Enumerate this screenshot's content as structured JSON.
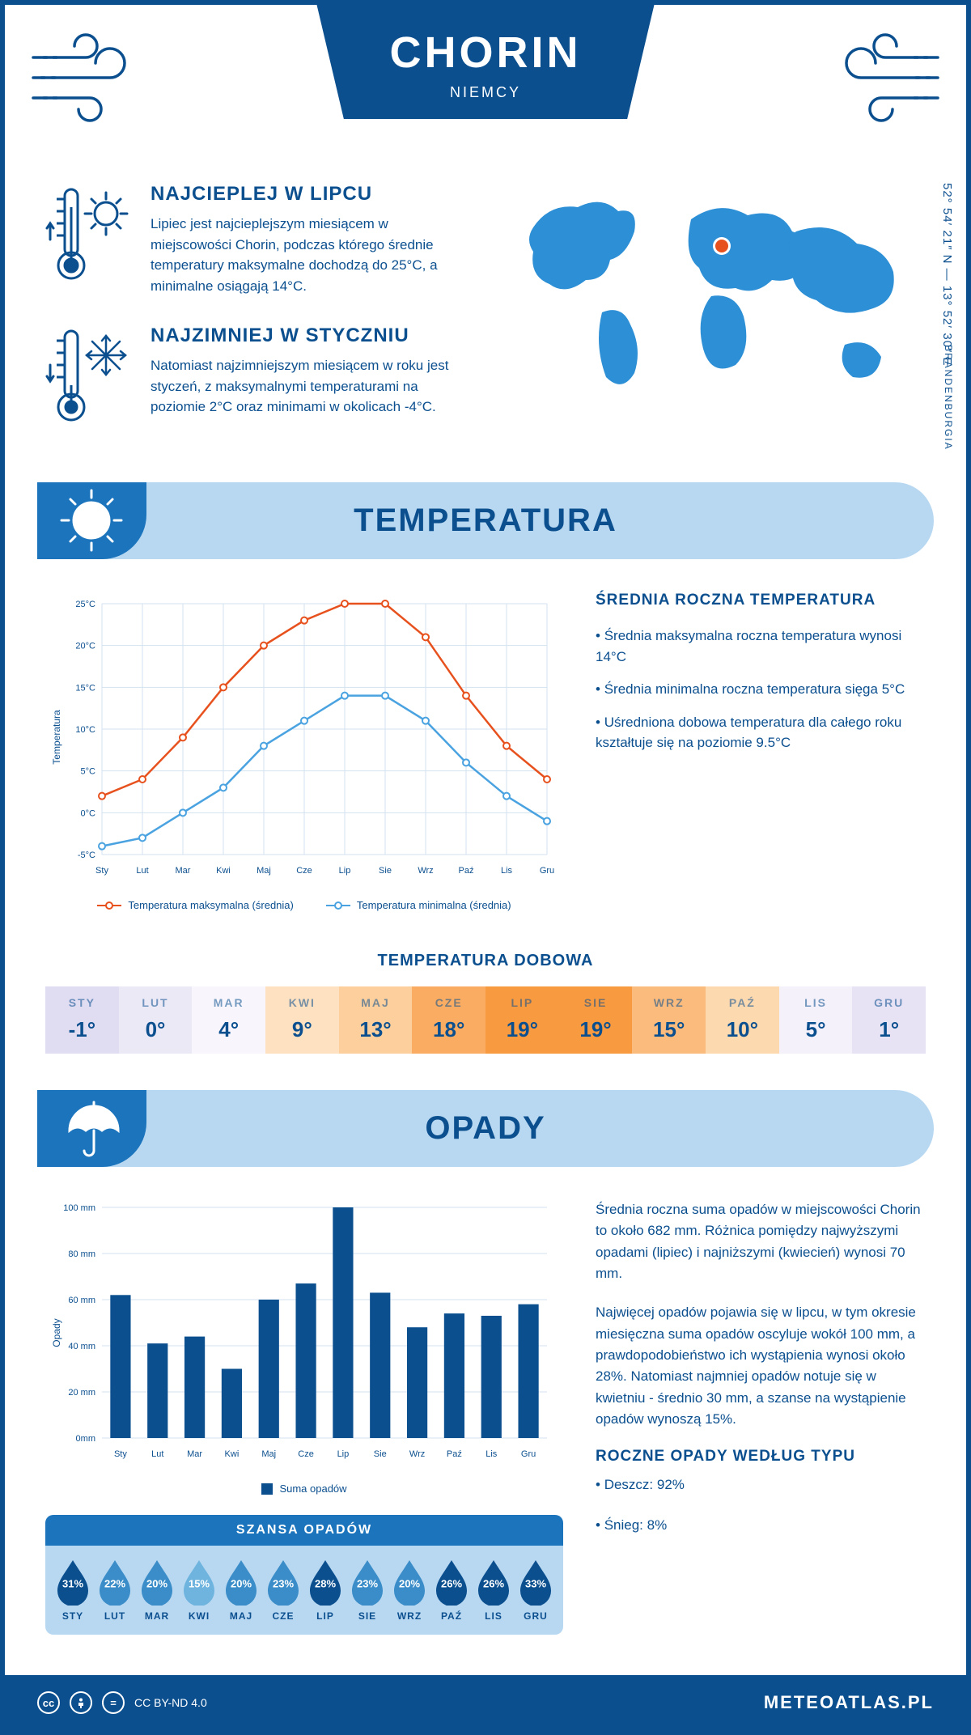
{
  "header": {
    "title": "CHORIN",
    "subtitle": "NIEMCY"
  },
  "location": {
    "coords": "52° 54′ 21″ N — 13° 52′ 30″ E",
    "region": "BRANDENBURGIA",
    "marker_color": "#e7511e"
  },
  "intro": {
    "hot": {
      "title": "NAJCIEPLEJ W LIPCU",
      "text": "Lipiec jest najcieplejszym miesiącem w miejscowości Chorin, podczas którego średnie temperatury maksymalne dochodzą do 25°C, a minimalne osiągają 14°C."
    },
    "cold": {
      "title": "NAJZIMNIEJ W STYCZNIU",
      "text": "Natomiast najzimniejszym miesiącem w roku jest styczeń, z maksymalnymi temperaturami na poziomie 2°C oraz minimami w okolicach -4°C."
    }
  },
  "months_short": [
    "Sty",
    "Lut",
    "Mar",
    "Kwi",
    "Maj",
    "Cze",
    "Lip",
    "Sie",
    "Wrz",
    "Paź",
    "Lis",
    "Gru"
  ],
  "months_upper": [
    "STY",
    "LUT",
    "MAR",
    "KWI",
    "MAJ",
    "CZE",
    "LIP",
    "SIE",
    "WRZ",
    "PAŹ",
    "LIS",
    "GRU"
  ],
  "temperature": {
    "section_title": "TEMPERATURA",
    "chart": {
      "type": "line",
      "ylabel": "Temperatura",
      "ylim": [
        -5,
        25
      ],
      "ytick_step": 5,
      "y_ticks": [
        "-5°C",
        "0°C",
        "5°C",
        "10°C",
        "15°C",
        "20°C",
        "25°C"
      ],
      "grid_color": "#d3e2f0",
      "background": "#ffffff",
      "series": {
        "max": {
          "label": "Temperatura maksymalna (średnia)",
          "color": "#e7511e",
          "values": [
            2,
            4,
            9,
            15,
            20,
            23,
            25,
            25,
            21,
            14,
            8,
            4
          ]
        },
        "min": {
          "label": "Temperatura minimalna (średnia)",
          "color": "#4aa3e0",
          "values": [
            -4,
            -3,
            0,
            3,
            8,
            11,
            14,
            14,
            11,
            6,
            2,
            -1
          ]
        }
      }
    },
    "info": {
      "title": "ŚREDNIA ROCZNA TEMPERATURA",
      "bullets": [
        "Średnia maksymalna roczna temperatura wynosi 14°C",
        "Średnia minimalna roczna temperatura sięga 5°C",
        "Uśredniona dobowa temperatura dla całego roku kształtuje się na poziomie 9.5°C"
      ]
    },
    "dobowa": {
      "title": "TEMPERATURA DOBOWA",
      "values": [
        "-1°",
        "0°",
        "4°",
        "9°",
        "13°",
        "18°",
        "19°",
        "19°",
        "15°",
        "10°",
        "5°",
        "1°"
      ],
      "bg_colors": [
        "#e0dcf2",
        "#ece9f7",
        "#f8f6fc",
        "#fde1c0",
        "#fccf9d",
        "#faad62",
        "#f89a40",
        "#f89a40",
        "#fbbb7d",
        "#fdd9b0",
        "#f4f1fa",
        "#e7e3f4"
      ]
    }
  },
  "rainfall": {
    "section_title": "OPADY",
    "chart": {
      "type": "bar",
      "ylabel": "Opady",
      "ylim": [
        0,
        100
      ],
      "ytick_step": 20,
      "y_ticks": [
        "0mm",
        "20 mm",
        "40 mm",
        "60 mm",
        "80 mm",
        "100 mm"
      ],
      "bar_color": "#0b4f8f",
      "grid_color": "#d3e2f0",
      "values": [
        62,
        41,
        44,
        30,
        60,
        67,
        100,
        63,
        48,
        54,
        53,
        58
      ],
      "legend": "Suma opadów"
    },
    "text1": "Średnia roczna suma opadów w miejscowości Chorin to około 682 mm. Różnica pomiędzy najwyższymi opadami (lipiec) i najniższymi (kwiecień) wynosi 70 mm.",
    "text2": "Najwięcej opadów pojawia się w lipcu, w tym okresie miesięczna suma opadów oscyluje wokół 100 mm, a prawdopodobieństwo ich wystąpienia wynosi około 28%. Natomiast najmniej opadów notuje się w kwietniu - średnio 30 mm, a szanse na wystąpienie opadów wynoszą 15%.",
    "chance": {
      "title": "SZANSA OPADÓW",
      "values": [
        "31%",
        "22%",
        "20%",
        "15%",
        "20%",
        "23%",
        "28%",
        "23%",
        "20%",
        "26%",
        "26%",
        "33%"
      ],
      "drop_colors": [
        "#0b4f8f",
        "#3a8dc8",
        "#3a8dc8",
        "#6eb4de",
        "#3a8dc8",
        "#3a8dc8",
        "#0b4f8f",
        "#3a8dc8",
        "#3a8dc8",
        "#0b4f8f",
        "#0b4f8f",
        "#0b4f8f"
      ]
    },
    "by_type": {
      "title": "ROCZNE OPADY WEDŁUG TYPU",
      "bullets": [
        "Deszcz: 92%",
        "Śnieg: 8%"
      ]
    }
  },
  "footer": {
    "license": "CC BY-ND 4.0",
    "site": "METEOATLAS.PL"
  },
  "colors": {
    "primary": "#0b4f8f",
    "accent_blue": "#1c75bc",
    "light_blue": "#b8d8f2",
    "map": "#2d8fd5"
  }
}
